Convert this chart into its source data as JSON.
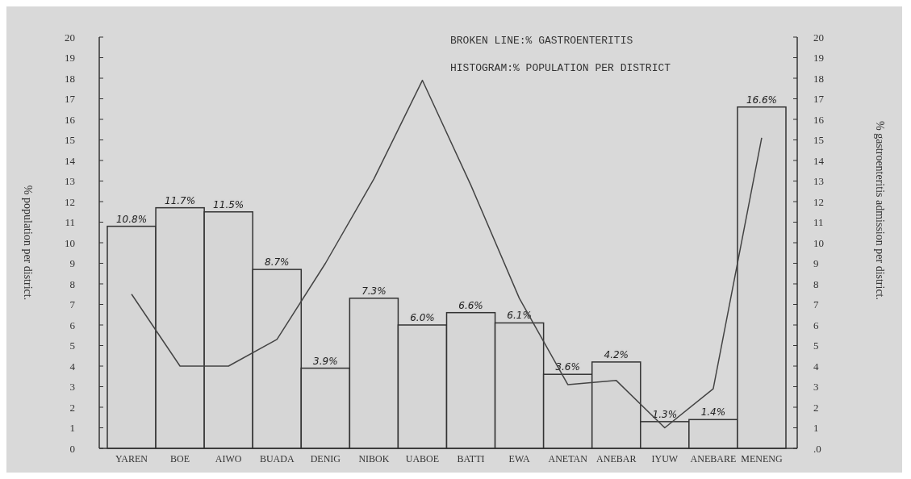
{
  "chart_data": {
    "type": "bar",
    "categories": [
      "YAREN",
      "BOE",
      "AIWO",
      "BUADA",
      "DENIG",
      "NIBOK",
      "UABOE",
      "BATTI",
      "EWA",
      "ANETAN",
      "ANEBAR",
      "IYUW",
      "ANEBARE",
      "MENENG"
    ],
    "series": [
      {
        "color": "#d6d6d6",
        "values": [
          10.8,
          11.7,
          11.5,
          8.7,
          3.9,
          7.3,
          6.0,
          6.6,
          6.1,
          3.6,
          4.2,
          1.3,
          1.4,
          16.6
        ],
        "value_labels": [
          "10.8%",
          "11.7%",
          "11.5%",
          "8.7%",
          "3.9%",
          "7.3%",
          "6.0%",
          "6.6%",
          "6.1%",
          "3.6%",
          "4.2%",
          "1.3%",
          "1.4%",
          "16.6%"
        ]
      },
      {
        "type": "line",
        "axis": "y2",
        "color": "#444444",
        "values": [
          7.5,
          4,
          4,
          5.3,
          9,
          13.1,
          17.9,
          12.8,
          7.3,
          3.1,
          3.3,
          1,
          2.9,
          15.1
        ]
      }
    ],
    "ylabel": "% population per district.",
    "y2label": "% gastroenteritis admission per district.",
    "ylim": [
      0,
      20
    ],
    "yticks": [
      0,
      1,
      2,
      3,
      4,
      5,
      6,
      7,
      8,
      9,
      10,
      11,
      12,
      13,
      14,
      15,
      16,
      17,
      18,
      19,
      20
    ],
    "y2lim": [
      0,
      20
    ],
    "y2ticks": [
      {
        "value": 0,
        "label": ".0"
      },
      1,
      2,
      3,
      4,
      5,
      6,
      7,
      8,
      9,
      10,
      11,
      12,
      13,
      14,
      15,
      16,
      17,
      18,
      19,
      20
    ],
    "annotations": [
      "BROKEN LINE:% GASTROENTERITIS",
      "HISTOGRAM:% POPULATION PER DISTRICT"
    ],
    "grid": false,
    "marker": "none",
    "line_style": "solid"
  }
}
